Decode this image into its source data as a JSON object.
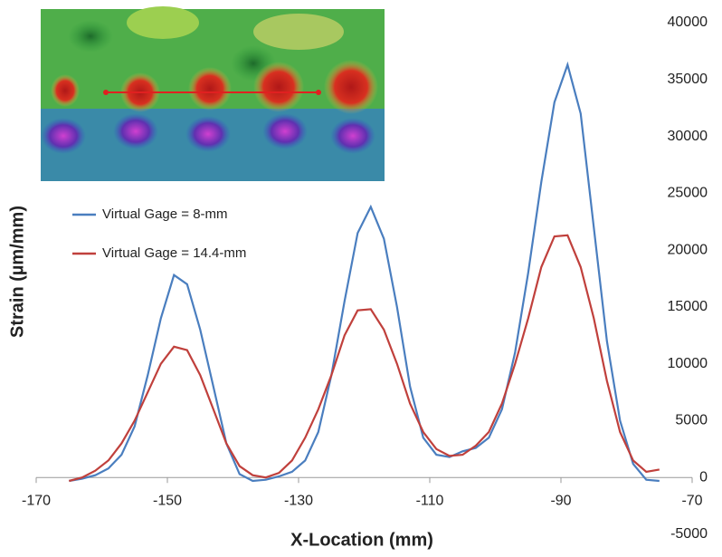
{
  "chart_data": {
    "type": "line",
    "xlabel": "X-Location (mm)",
    "ylabel": "Strain (µm/mm)",
    "x": [
      -165,
      -163,
      -161,
      -159,
      -157,
      -155,
      -153,
      -151,
      -149,
      -147,
      -145,
      -143,
      -141,
      -139,
      -137,
      -135,
      -133,
      -131,
      -129,
      -127,
      -125,
      -123,
      -121,
      -119,
      -117,
      -115,
      -113,
      -111,
      -109,
      -107,
      -105,
      -103,
      -101,
      -99,
      -97,
      -95,
      -93,
      -91,
      -89,
      -87,
      -85,
      -83,
      -81,
      -79,
      -77,
      -75
    ],
    "series": [
      {
        "name": "Virtual Gage = 8-mm",
        "color": "#4a7ebf",
        "values": [
          -300,
          -100,
          200,
          800,
          2000,
          4500,
          9000,
          14000,
          17800,
          17000,
          13000,
          8000,
          3000,
          300,
          -300,
          -200,
          100,
          500,
          1500,
          4000,
          9000,
          15500,
          21500,
          23800,
          21000,
          15000,
          8000,
          3500,
          2000,
          1800,
          2300,
          2600,
          3500,
          6000,
          11000,
          18000,
          26000,
          33000,
          36300,
          32000,
          22000,
          12000,
          5000,
          1200,
          -200,
          -300
        ]
      },
      {
        "name": "Virtual Gage = 14.4-mm",
        "color": "#c0403c",
        "values": [
          -300,
          0,
          600,
          1500,
          3000,
          5000,
          7500,
          10000,
          11500,
          11200,
          9000,
          6000,
          3000,
          1000,
          200,
          0,
          400,
          1500,
          3500,
          6000,
          9000,
          12500,
          14700,
          14800,
          13000,
          10000,
          6500,
          4000,
          2500,
          1900,
          2000,
          2800,
          4000,
          6500,
          10000,
          14000,
          18500,
          21200,
          21300,
          18500,
          14000,
          8500,
          4000,
          1500,
          500,
          700
        ]
      }
    ],
    "xlim": [
      -170,
      -70
    ],
    "xticks": [
      -170,
      -150,
      -130,
      -110,
      -90,
      -70
    ],
    "ylim": [
      -5000,
      40000
    ],
    "yticks": [
      -5000,
      0,
      5000,
      10000,
      15000,
      20000,
      25000,
      30000,
      35000,
      40000
    ],
    "legend": "upper left"
  }
}
